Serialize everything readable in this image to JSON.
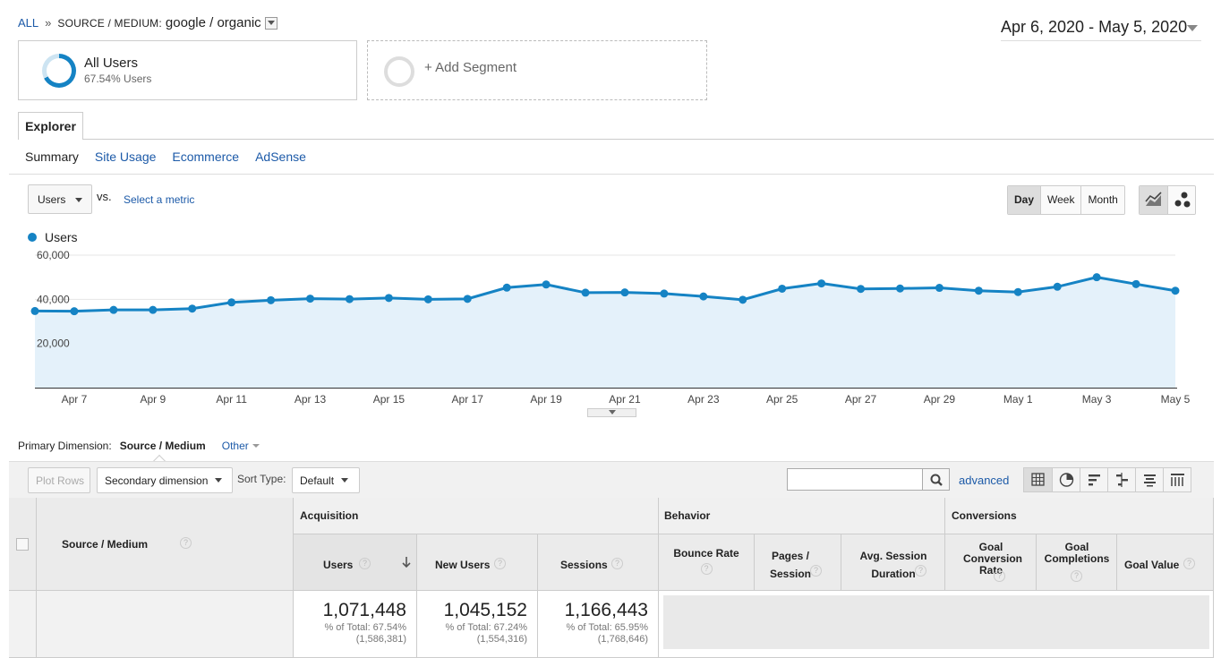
{
  "breadcrumb": {
    "all": "ALL",
    "separator": "»",
    "dimension": "SOURCE / MEDIUM:",
    "value": "google / organic"
  },
  "date_range": "Apr 6, 2020 - May 5, 2020",
  "segments": [
    {
      "name": "All Users",
      "sub": "67.54% Users",
      "share": 0.6754
    },
    {
      "name": "+ Add Segment"
    }
  ],
  "explorer_tab": "Explorer",
  "subtabs": [
    "Summary",
    "Site Usage",
    "Ecommerce",
    "AdSense"
  ],
  "metric_select": "Users",
  "vs_label": "vs.",
  "select_metric": "Select a metric",
  "periods": [
    "Day",
    "Week",
    "Month"
  ],
  "legend": "Users",
  "colors": {
    "accent": "#1583c4",
    "link": "#1c5aa8",
    "area": "#e4f1fa"
  },
  "chart_data": {
    "type": "line",
    "series": [
      {
        "name": "Users",
        "values": [
          34700,
          34600,
          35200,
          35200,
          35800,
          38600,
          39600,
          40300,
          40100,
          40600,
          40000,
          40200,
          45300,
          46700,
          43000,
          43100,
          42600,
          41300,
          39800,
          44800,
          47200,
          44700,
          44900,
          45200,
          43900,
          43300,
          45700,
          50000,
          46900,
          43900
        ]
      }
    ],
    "x_ticks": [
      "Apr 7",
      "Apr 9",
      "Apr 11",
      "Apr 13",
      "Apr 15",
      "Apr 17",
      "Apr 19",
      "Apr 21",
      "Apr 23",
      "Apr 25",
      "Apr 27",
      "Apr 29",
      "May 1",
      "May 3",
      "May 5"
    ],
    "y_ticks": [
      "20,000",
      "40,000",
      "60,000"
    ],
    "ylim": [
      0,
      60000
    ],
    "grid": true
  },
  "primary_dimension": {
    "label": "Primary Dimension:",
    "value": "Source / Medium",
    "other": "Other"
  },
  "toolbar": {
    "plot_rows": "Plot Rows",
    "secondary": "Secondary dimension",
    "sort_label": "Sort Type:",
    "sort_value": "Default",
    "advanced": "advanced"
  },
  "table": {
    "dim_header": "Source / Medium",
    "groups": [
      "Acquisition",
      "Behavior",
      "Conversions"
    ],
    "columns": [
      "Users",
      "New Users",
      "Sessions",
      "Bounce Rate",
      "Pages / Session",
      "Avg. Session Duration",
      "Goal Conversion Rate",
      "Goal Completions",
      "Goal Value"
    ],
    "totals": [
      {
        "value": "1,071,448",
        "pct": "% of Total: 67.54%",
        "of": "(1,586,381)"
      },
      {
        "value": "1,045,152",
        "pct": "% of Total: 67.24%",
        "of": "(1,554,316)"
      },
      {
        "value": "1,166,443",
        "pct": "% of Total: 65.95%",
        "of": "(1,768,646)"
      }
    ]
  }
}
